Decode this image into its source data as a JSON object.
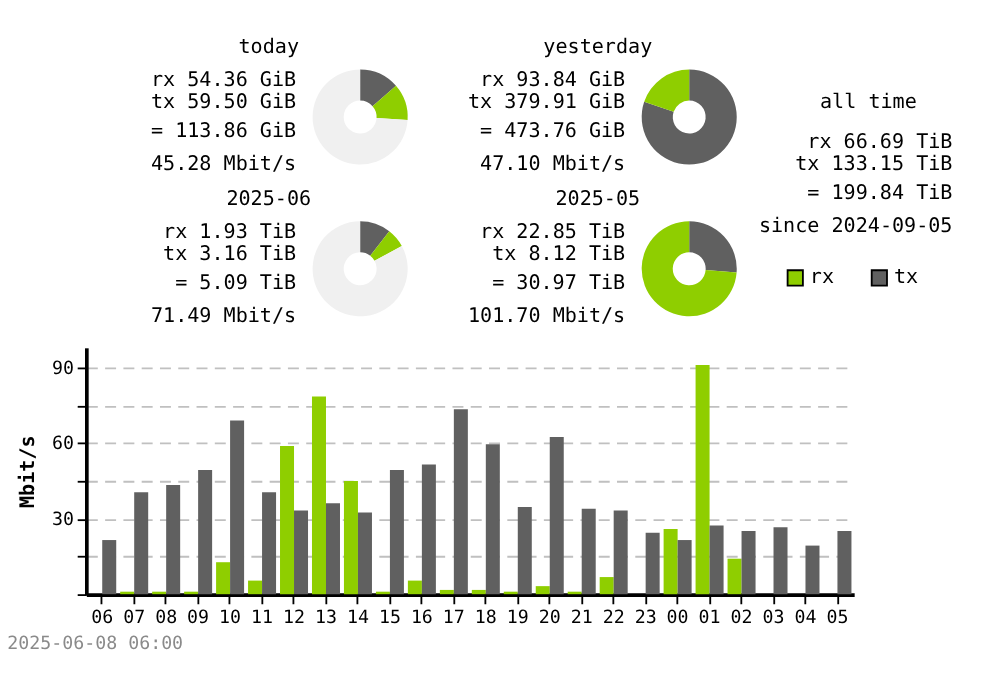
{
  "chart_data": [
    {
      "type": "donut",
      "title": "today",
      "categories": [
        null,
        null,
        null
      ],
      "values": [
        13.6,
        12.4,
        74.0
      ],
      "colors": [
        "#606060",
        "#8fce00",
        "#f0f0f0"
      ],
      "annotations": [
        "rx 54.36 GiB",
        "tx 59.50 GiB",
        "= 113.86 GiB",
        "45.28 Mbit/s"
      ]
    },
    {
      "type": "donut",
      "title": "yesterday",
      "categories": [
        null,
        null
      ],
      "values": [
        80.19,
        19.81
      ],
      "colors": [
        "#606060",
        "#8fce00"
      ],
      "annotations": [
        "rx 93.84 GiB",
        "tx 379.91 GiB",
        "= 473.76 GiB",
        "47.10 Mbit/s"
      ]
    },
    {
      "type": "other",
      "title": "all time",
      "annotations": [
        "rx 66.69 TiB",
        "tx 133.15 TiB",
        "= 199.84 TiB",
        "since 2024-09-05"
      ]
    },
    {
      "type": "donut",
      "title": "2025-06",
      "categories": [
        null,
        null,
        null
      ],
      "values": [
        10.5,
        6.5,
        83.0
      ],
      "colors": [
        "#606060",
        "#8fce00",
        "#f0f0f0"
      ],
      "annotations": [
        "rx 1.93 TiB",
        "tx 3.16 TiB",
        "= 5.09 TiB",
        "71.49 Mbit/s"
      ]
    },
    {
      "type": "donut",
      "title": "2025-05",
      "categories": [
        null,
        null
      ],
      "values": [
        26.22,
        73.78
      ],
      "colors": [
        "#606060",
        "#8fce00"
      ],
      "annotations": [
        "rx 22.85 TiB",
        "tx 8.12 TiB",
        "= 30.97 TiB",
        "101.70 Mbit/s"
      ]
    },
    {
      "type": "bar",
      "ylabel": "Mbit/s",
      "legend": "top right",
      "grid": "y",
      "categories": [
        "06",
        "07",
        "08",
        "09",
        "10",
        "11",
        "12",
        "13",
        "14",
        "15",
        "16",
        "17",
        "18",
        "19",
        "20",
        "21",
        "22",
        "23",
        "00",
        "01",
        "02",
        "03",
        "04",
        "05"
      ],
      "series": [
        {
          "name": "rx",
          "color": "#8fce00",
          "values": [
            0,
            1,
            1,
            1,
            12.7,
            5.4,
            58.8,
            78.5,
            44.9,
            1,
            5.4,
            1.7,
            1.7,
            1,
            3.2,
            1,
            6.8,
            0,
            25.9,
            91,
            14.1,
            0,
            0,
            0
          ]
        },
        {
          "name": "tx",
          "color": "#606060",
          "values": [
            21.5,
            40.5,
            43.4,
            49.3,
            69,
            40.5,
            33.2,
            36.1,
            32.4,
            49.3,
            51.5,
            73.4,
            59.5,
            34.6,
            62.4,
            33.9,
            33.2,
            24.4,
            21.5,
            27.3,
            25.1,
            26.6,
            19.3,
            25.1
          ]
        }
      ],
      "ylim": [
        0,
        98
      ],
      "yticks": [
        {
          "value": 0,
          "label": null
        },
        {
          "value": 15,
          "label": null
        },
        30,
        {
          "value": 45,
          "label": null
        },
        60,
        {
          "value": 75,
          "label": null
        },
        90
      ],
      "annotations": [
        "2025-06-08 06:00"
      ]
    }
  ]
}
